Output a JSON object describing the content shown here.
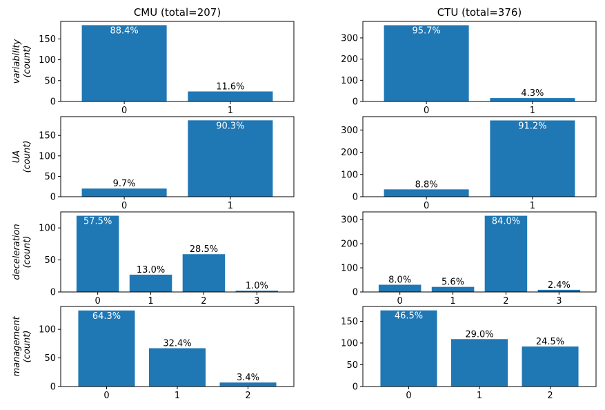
{
  "chart_data": [
    {
      "type": "bar",
      "title": "CMU (total=207)",
      "ylabel": "variability\n(count)",
      "categories": [
        "0",
        "1"
      ],
      "values": [
        183,
        24
      ],
      "bar_labels": [
        "88.4%",
        "11.6%"
      ],
      "yticks": [
        0,
        50,
        100,
        150
      ],
      "ylim": [
        0,
        192
      ]
    },
    {
      "type": "bar",
      "title": "CTU (total=376)",
      "ylabel": "",
      "categories": [
        "0",
        "1"
      ],
      "values": [
        360,
        16
      ],
      "bar_labels": [
        "95.7%",
        "4.3%"
      ],
      "yticks": [
        0,
        100,
        200,
        300
      ],
      "ylim": [
        0,
        378
      ]
    },
    {
      "type": "bar",
      "title": "",
      "ylabel": "UA\n(count)",
      "categories": [
        "0",
        "1"
      ],
      "values": [
        20,
        187
      ],
      "bar_labels": [
        "9.7%",
        "90.3%"
      ],
      "yticks": [
        0,
        50,
        100,
        150
      ],
      "ylim": [
        0,
        196
      ]
    },
    {
      "type": "bar",
      "title": "",
      "ylabel": "",
      "categories": [
        "0",
        "1"
      ],
      "values": [
        33,
        343
      ],
      "bar_labels": [
        "8.8%",
        "91.2%"
      ],
      "yticks": [
        0,
        100,
        200,
        300
      ],
      "ylim": [
        0,
        360
      ]
    },
    {
      "type": "bar",
      "title": "",
      "ylabel": "deceleration\n(count)",
      "categories": [
        "0",
        "1",
        "2",
        "3"
      ],
      "values": [
        119,
        27,
        59,
        2
      ],
      "bar_labels": [
        "57.5%",
        "13.0%",
        "28.5%",
        "1.0%"
      ],
      "yticks": [
        0,
        50,
        100
      ],
      "ylim": [
        0,
        125
      ]
    },
    {
      "type": "bar",
      "title": "",
      "ylabel": "",
      "categories": [
        "0",
        "1",
        "2",
        "3"
      ],
      "values": [
        30,
        21,
        316,
        9
      ],
      "bar_labels": [
        "8.0%",
        "5.6%",
        "84.0%",
        "2.4%"
      ],
      "yticks": [
        0,
        100,
        200,
        300
      ],
      "ylim": [
        0,
        332
      ]
    },
    {
      "type": "bar",
      "title": "",
      "ylabel": "management\n(count)",
      "categories": [
        "0",
        "1",
        "2"
      ],
      "values": [
        133,
        67,
        7
      ],
      "bar_labels": [
        "64.3%",
        "32.4%",
        "3.4%"
      ],
      "yticks": [
        0,
        50,
        100
      ],
      "ylim": [
        0,
        140
      ]
    },
    {
      "type": "bar",
      "title": "",
      "ylabel": "",
      "categories": [
        "0",
        "1",
        "2"
      ],
      "values": [
        175,
        109,
        92
      ],
      "bar_labels": [
        "46.5%",
        "29.0%",
        "24.5%"
      ],
      "yticks": [
        0,
        50,
        100,
        150
      ],
      "ylim": [
        0,
        184
      ]
    }
  ],
  "colors": {
    "bar": "#1f77b4",
    "inside_label": "#ffffff",
    "outside_label": "#000000"
  }
}
